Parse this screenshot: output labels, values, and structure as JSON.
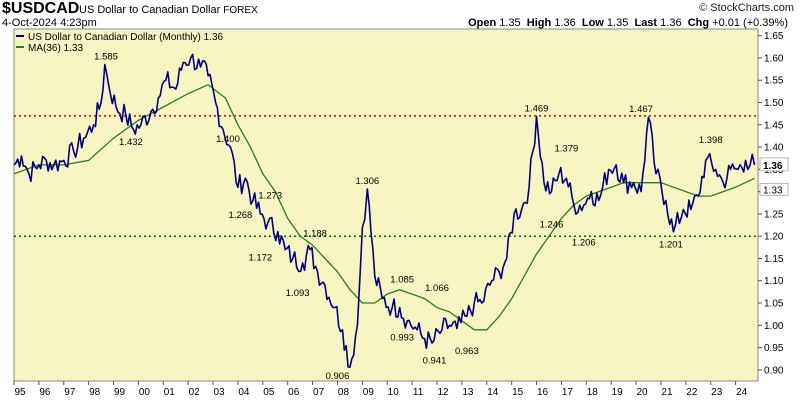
{
  "header": {
    "symbol": "$USDCAD",
    "description": "US Dollar to Canadian Dollar",
    "exchange": "FOREX",
    "date": "4-Oct-2024 4:23pm",
    "open_label": "Open",
    "open": "1.35",
    "high_label": "High",
    "high": "1.36",
    "low_label": "Low",
    "low": "1.35",
    "last_label": "Last",
    "last": "1.36",
    "chg_label": "Chg",
    "chg": "+0.01 (+0.39%)",
    "copyright": "© StockCharts.com"
  },
  "legend": {
    "price": "US Dollar to Canadian Dollar (Monthly) 1.36",
    "ma": "MA(36) 1.33"
  },
  "colors": {
    "plot_bg": "#f6f4c0",
    "price": "#000080",
    "ma": "#2e7d1a",
    "red_line": "#cc0000",
    "green_line": "#006600"
  },
  "chart_data": {
    "type": "line",
    "title": "$USDCAD US Dollar to Canadian Dollar",
    "xlabel": "",
    "ylabel": "",
    "ylim": [
      0.875,
      1.665
    ],
    "xlim": [
      1995.0,
      2024.9
    ],
    "y_ticks": [
      "1.65",
      "1.60",
      "1.55",
      "1.50",
      "1.45",
      "1.40",
      "1.35",
      "1.30",
      "1.25",
      "1.20",
      "1.15",
      "1.10",
      "1.05",
      "1.00",
      "0.95",
      "0.90"
    ],
    "x_ticks": [
      "95",
      "96",
      "97",
      "98",
      "99",
      "00",
      "01",
      "02",
      "03",
      "04",
      "05",
      "06",
      "07",
      "08",
      "09",
      "10",
      "11",
      "12",
      "13",
      "14",
      "15",
      "16",
      "17",
      "18",
      "19",
      "20",
      "21",
      "22",
      "23",
      "24"
    ],
    "grid": false,
    "legend_placement": "top-left",
    "reference_lines": [
      {
        "y": 1.47,
        "color": "red",
        "style": "dotted"
      },
      {
        "y": 1.2,
        "color": "green",
        "style": "dotted"
      }
    ],
    "series": [
      {
        "name": "US Dollar to Canadian Dollar (Monthly) 1.36",
        "x": [
          1995.0,
          1995.3,
          1995.6,
          1996.0,
          1996.3,
          1996.6,
          1997.0,
          1997.4,
          1997.8,
          1998.2,
          1998.5,
          1998.65,
          1998.8,
          1999.1,
          1999.5,
          1999.8,
          2000.1,
          2000.5,
          2000.8,
          2001.1,
          2001.5,
          2001.8,
          2002.1,
          2002.5,
          2002.8,
          2003.1,
          2003.4,
          2003.7,
          2004.0,
          2004.3,
          2004.6,
          2004.9,
          2005.2,
          2005.6,
          2005.9,
          2006.2,
          2006.6,
          2006.9,
          2007.2,
          2007.5,
          2007.9,
          2008.2,
          2008.5,
          2008.8,
          2009.0,
          2009.2,
          2009.5,
          2009.8,
          2010.2,
          2010.5,
          2010.8,
          2011.2,
          2011.5,
          2011.8,
          2012.2,
          2012.5,
          2012.8,
          2013.2,
          2013.5,
          2013.8,
          2014.2,
          2014.5,
          2014.8,
          2015.1,
          2015.4,
          2015.7,
          2016.0,
          2016.3,
          2016.6,
          2016.9,
          2017.2,
          2017.5,
          2017.9,
          2018.2,
          2018.5,
          2018.9,
          2019.2,
          2019.5,
          2019.9,
          2020.2,
          2020.5,
          2020.8,
          2021.2,
          2021.5,
          2021.9,
          2022.2,
          2022.5,
          2022.8,
          2023.2,
          2023.5,
          2023.8,
          2024.1,
          2024.4,
          2024.76
        ],
        "y": [
          1.36,
          1.38,
          1.34,
          1.36,
          1.37,
          1.36,
          1.37,
          1.39,
          1.42,
          1.45,
          1.5,
          1.585,
          1.54,
          1.49,
          1.47,
          1.44,
          1.45,
          1.48,
          1.51,
          1.55,
          1.53,
          1.59,
          1.6,
          1.58,
          1.56,
          1.5,
          1.44,
          1.4,
          1.31,
          1.33,
          1.28,
          1.25,
          1.23,
          1.21,
          1.17,
          1.15,
          1.14,
          1.17,
          1.12,
          1.09,
          1.04,
          0.99,
          0.906,
          1.0,
          1.22,
          1.306,
          1.11,
          1.06,
          1.04,
          1.04,
          1.01,
          0.99,
          0.97,
          0.96,
          0.99,
          1.0,
          0.993,
          1.02,
          1.05,
          1.05,
          1.1,
          1.12,
          1.15,
          1.25,
          1.26,
          1.31,
          1.469,
          1.32,
          1.3,
          1.34,
          1.33,
          1.27,
          1.27,
          1.3,
          1.28,
          1.35,
          1.36,
          1.32,
          1.32,
          1.3,
          1.467,
          1.34,
          1.28,
          1.21,
          1.26,
          1.26,
          1.29,
          1.37,
          1.35,
          1.32,
          1.35,
          1.35,
          1.37,
          1.36
        ]
      },
      {
        "name": "MA(36) 1.33",
        "x": [
          1995.0,
          1996.0,
          1997.0,
          1998.0,
          1999.0,
          2000.0,
          2001.0,
          2002.0,
          2002.8,
          2003.5,
          2004.0,
          2004.5,
          2005.0,
          2005.5,
          2006.0,
          2006.5,
          2007.0,
          2007.5,
          2008.0,
          2008.5,
          2009.0,
          2009.5,
          2010.0,
          2010.5,
          2011.0,
          2011.5,
          2012.0,
          2012.5,
          2013.0,
          2013.5,
          2014.0,
          2014.5,
          2015.0,
          2015.5,
          2016.0,
          2016.5,
          2017.0,
          2017.5,
          2018.0,
          2018.5,
          2019.0,
          2019.5,
          2020.0,
          2020.5,
          2021.0,
          2021.5,
          2022.0,
          2022.5,
          2023.0,
          2023.5,
          2024.0,
          2024.76
        ],
        "y": [
          1.34,
          1.36,
          1.36,
          1.37,
          1.42,
          1.46,
          1.49,
          1.52,
          1.54,
          1.51,
          1.45,
          1.4,
          1.34,
          1.3,
          1.24,
          1.2,
          1.18,
          1.15,
          1.12,
          1.08,
          1.05,
          1.05,
          1.07,
          1.08,
          1.07,
          1.06,
          1.04,
          1.03,
          1.01,
          0.99,
          0.99,
          1.02,
          1.06,
          1.11,
          1.16,
          1.2,
          1.24,
          1.27,
          1.29,
          1.3,
          1.31,
          1.32,
          1.32,
          1.32,
          1.32,
          1.31,
          1.3,
          1.29,
          1.29,
          1.3,
          1.31,
          1.33
        ]
      }
    ],
    "annotations": [
      {
        "text": "1.585",
        "x": 1998.7,
        "y": 1.585,
        "pos": "above"
      },
      {
        "text": "1.432",
        "x": 1999.7,
        "y": 1.432,
        "pos": "below"
      },
      {
        "text": "1.400",
        "x": 2003.6,
        "y": 1.4,
        "pos": "above"
      },
      {
        "text": "1.273",
        "x": 2005.3,
        "y": 1.273,
        "pos": "above"
      },
      {
        "text": "1.268",
        "x": 2004.1,
        "y": 1.268,
        "pos": "below"
      },
      {
        "text": "1.188",
        "x": 2007.1,
        "y": 1.188,
        "pos": "above"
      },
      {
        "text": "1.172",
        "x": 2004.9,
        "y": 1.172,
        "pos": "below"
      },
      {
        "text": "1.093",
        "x": 2006.4,
        "y": 1.093,
        "pos": "below"
      },
      {
        "text": "0.906",
        "x": 2008.0,
        "y": 0.906,
        "pos": "below"
      },
      {
        "text": "1.306",
        "x": 2009.2,
        "y": 1.306,
        "pos": "above"
      },
      {
        "text": "1.085",
        "x": 2010.6,
        "y": 1.085,
        "pos": "above"
      },
      {
        "text": "0.993",
        "x": 2010.6,
        "y": 0.993,
        "pos": "below"
      },
      {
        "text": "1.066",
        "x": 2012.0,
        "y": 1.066,
        "pos": "above"
      },
      {
        "text": "0.941",
        "x": 2011.9,
        "y": 0.941,
        "pos": "below"
      },
      {
        "text": "0.963",
        "x": 2013.2,
        "y": 0.963,
        "pos": "below"
      },
      {
        "text": "1.469",
        "x": 2016.0,
        "y": 1.469,
        "pos": "above"
      },
      {
        "text": "1.379",
        "x": 2017.2,
        "y": 1.379,
        "pos": "above"
      },
      {
        "text": "1.246",
        "x": 2016.6,
        "y": 1.246,
        "pos": "below"
      },
      {
        "text": "1.206",
        "x": 2017.9,
        "y": 1.206,
        "pos": "below"
      },
      {
        "text": "1.467",
        "x": 2020.2,
        "y": 1.467,
        "pos": "above"
      },
      {
        "text": "1.201",
        "x": 2021.4,
        "y": 1.201,
        "pos": "below"
      },
      {
        "text": "1.398",
        "x": 2023.0,
        "y": 1.398,
        "pos": "above"
      }
    ],
    "last_value_labels": [
      {
        "series": 0,
        "text": "1.36"
      },
      {
        "series": 1,
        "text": "1.33"
      }
    ]
  }
}
